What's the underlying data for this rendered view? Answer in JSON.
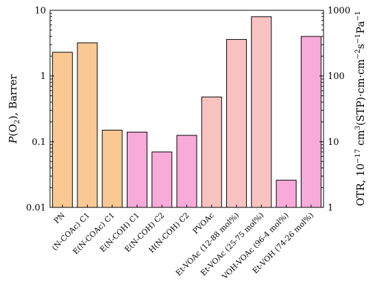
{
  "chart_data": {
    "type": "bar",
    "title": "",
    "yscale": "log",
    "ylim": [
      0.01,
      10
    ],
    "yticks": [
      "0.01",
      "0.1",
      "1",
      "10"
    ],
    "y2lim": [
      1,
      1000
    ],
    "y2ticks": [
      "1",
      "10",
      "100",
      "1000"
    ],
    "ylabel": {
      "pre": "P",
      "paren_open": "(O",
      "sub": "2",
      "post": "), Barrer"
    },
    "y2label": {
      "p1": "OTR, 10",
      "sup1": "−17",
      "p2": " cm",
      "sup2": "3",
      "p3": "(STP)·cm·cm",
      "sup3": "−2",
      "p4": "s",
      "sup4": "−1",
      "p5": "Pa",
      "sup5": "−1"
    },
    "categories": [
      "PN",
      "(N-COAc) C1",
      "E(N-COAc) C1",
      "E(N-COH) C1",
      "E(N-COH) C2",
      "H(N-COH) C2",
      "PVOAc",
      "Et-VOAc (12-88 mol%)",
      "Et-VOAc (25-75 mol%)",
      "VOH-VOAc (96-4 mol%)",
      "Et-VOH (74-26 mol%)"
    ],
    "values": [
      2.3,
      3.2,
      0.15,
      0.14,
      0.07,
      0.125,
      0.48,
      3.6,
      8.0,
      0.026,
      4.0
    ],
    "colors": [
      "#f9c893",
      "#f9c893",
      "#f9c893",
      "#f8aad9",
      "#f8aad9",
      "#f8aad9",
      "#f8c2c1",
      "#f8c2c1",
      "#f8c2c1",
      "#f8aad9",
      "#f8aad9"
    ]
  }
}
